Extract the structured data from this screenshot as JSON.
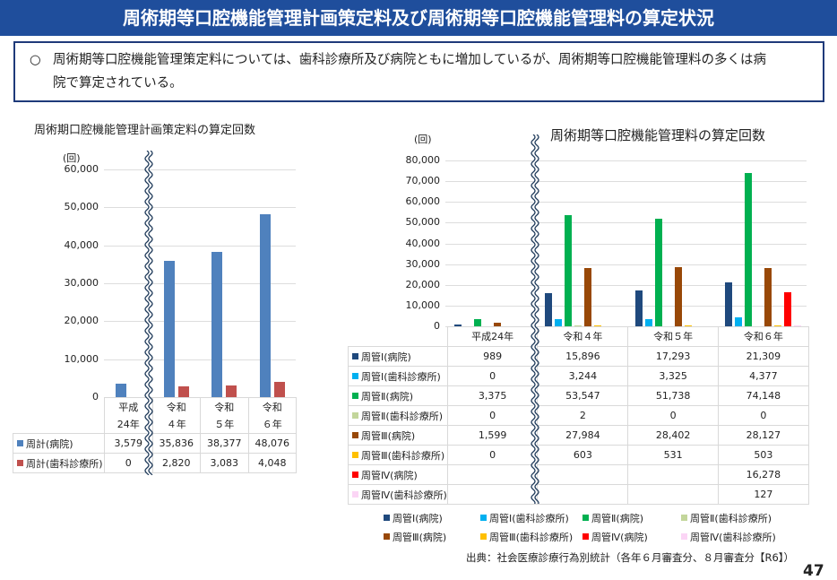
{
  "header": {
    "title": "周術期等口腔機能管理計画策定料及び周術期等口腔機能管理料の算定状況"
  },
  "summary": {
    "bullet": "○",
    "line1": "周術期等口腔機能管理策定料については、歯科診療所及び病院ともに増加しているが、周術期等口腔機能管理料の多くは病",
    "line2": "院で算定されている。"
  },
  "chart_data": [
    {
      "type": "bar",
      "title": "周術期口腔機能管理計画策定料の算定回数",
      "ylabel": "(回)",
      "ylim": [
        0,
        60000
      ],
      "yticks": [
        "60,000",
        "50,000",
        "40,000",
        "30,000",
        "20,000",
        "10,000",
        "0"
      ],
      "ytick_values": [
        60000,
        50000,
        40000,
        30000,
        20000,
        10000,
        0
      ],
      "grid": true,
      "axis_break": "between 平成24年 and 令和4年",
      "categories": [
        [
          "平成",
          "24年"
        ],
        [
          "令和",
          "４年"
        ],
        [
          "令和",
          "５年"
        ],
        [
          "令和",
          "６年"
        ]
      ],
      "series": [
        {
          "name": "周計(病院)",
          "color": "#4f81bd",
          "values": [
            3579,
            35836,
            38377,
            48076
          ],
          "labels": [
            "3,579",
            "35,836",
            "38,377",
            "48,076"
          ]
        },
        {
          "name": "周計(歯科診療所)",
          "color": "#c0504d",
          "values": [
            0,
            2820,
            3083,
            4048
          ],
          "labels": [
            "0",
            "2,820",
            "3,083",
            "4,048"
          ]
        }
      ]
    },
    {
      "type": "bar",
      "title": "周術期等口腔機能管理料の算定回数",
      "ylabel": "(回)",
      "ylim": [
        0,
        80000
      ],
      "yticks": [
        "80,000",
        "70,000",
        "60,000",
        "50,000",
        "40,000",
        "30,000",
        "20,000",
        "10,000",
        "0"
      ],
      "ytick_values": [
        80000,
        70000,
        60000,
        50000,
        40000,
        30000,
        20000,
        10000,
        0
      ],
      "grid": true,
      "axis_break": "between 平成24年 and 令和4年",
      "legend": "bottom",
      "categories": [
        "平成24年",
        "令和４年",
        "令和５年",
        "令和６年"
      ],
      "series": [
        {
          "name": "周管Ⅰ(病院)",
          "color": "#1f497d",
          "values": [
            989,
            15896,
            17293,
            21309
          ],
          "labels": [
            "989",
            "15,896",
            "17,293",
            "21,309"
          ]
        },
        {
          "name": "周管Ⅰ(歯科診療所)",
          "color": "#00b0f0",
          "values": [
            0,
            3244,
            3325,
            4377
          ],
          "labels": [
            "0",
            "3,244",
            "3,325",
            "4,377"
          ]
        },
        {
          "name": "周管Ⅱ(病院)",
          "color": "#00b050",
          "values": [
            3375,
            53547,
            51738,
            74148
          ],
          "labels": [
            "3,375",
            "53,547",
            "51,738",
            "74,148"
          ]
        },
        {
          "name": "周管Ⅱ(歯科診療所)",
          "color": "#c3d69b",
          "values": [
            0,
            2,
            0,
            0
          ],
          "labels": [
            "0",
            "2",
            "0",
            "0"
          ]
        },
        {
          "name": "周管Ⅲ(病院)",
          "color": "#984807",
          "values": [
            1599,
            27984,
            28402,
            28127
          ],
          "labels": [
            "1,599",
            "27,984",
            "28,402",
            "28,127"
          ]
        },
        {
          "name": "周管Ⅲ(歯科診療所)",
          "color": "#ffc000",
          "values": [
            0,
            603,
            531,
            503
          ],
          "labels": [
            "0",
            "603",
            "531",
            "503"
          ]
        },
        {
          "name": "周管Ⅳ(病院)",
          "color": "#ff0000",
          "values": [
            null,
            null,
            null,
            16278
          ],
          "labels": [
            "",
            "",
            "",
            "16,278"
          ]
        },
        {
          "name": "周管Ⅳ(歯科診療所)",
          "color": "#fbd5f5",
          "values": [
            null,
            null,
            null,
            127
          ],
          "labels": [
            "",
            "",
            "",
            "127"
          ]
        }
      ]
    }
  ],
  "source": "出典：社会医療診療行為別統計（各年６月審査分、８月審査分【R6】）",
  "page_number": "47"
}
